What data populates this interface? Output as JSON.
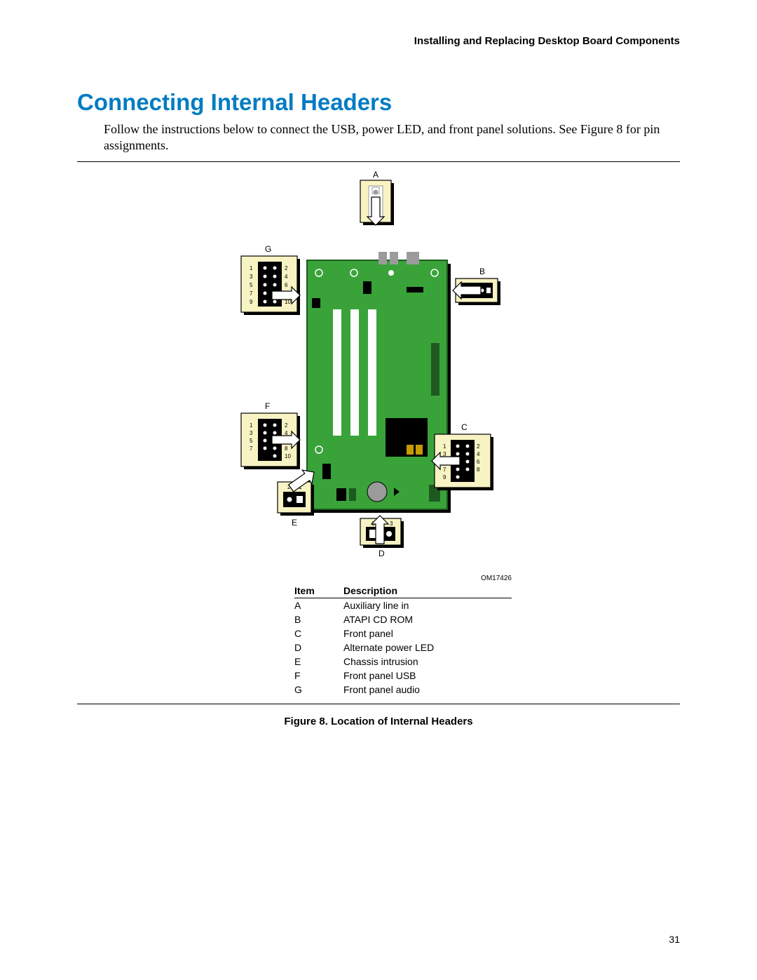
{
  "doc_header": "Installing and Replacing Desktop Board Components",
  "title": "Connecting Internal Headers",
  "intro": "Follow the instructions below to connect the USB, power LED, and front panel solutions.  See Figure 8 for pin assignments.",
  "figure_id": "OM17426",
  "caption": "Figure 8.  Location of Internal Headers",
  "page": "31",
  "table": {
    "headers": [
      "Item",
      "Description"
    ],
    "rows": [
      [
        "A",
        "Auxiliary line in"
      ],
      [
        "B",
        "ATAPI CD ROM"
      ],
      [
        "C",
        "Front panel"
      ],
      [
        "D",
        "Alternate power LED"
      ],
      [
        "E",
        "Chassis intrusion"
      ],
      [
        "F",
        "Front panel USB"
      ],
      [
        "G",
        "Front panel audio"
      ]
    ]
  },
  "diagram": {
    "colors": {
      "board": "#39a33a",
      "board_border": "#1e5a1f",
      "callout_bg": "#f8f3c3",
      "callout_border": "#000000",
      "shadow": "#000000",
      "pin_black": "#000000",
      "pin_white": "#ffffff",
      "gray_comp": "#9b9b9b",
      "dark_comp": "#2f2f2f",
      "arrow_fill": "#ffffff",
      "arrow_stroke": "#000000"
    },
    "labels": {
      "A": "A",
      "B": "B",
      "C": "C",
      "D": "D",
      "E": "E",
      "F": "F",
      "G": "G"
    },
    "pins": {
      "g_left": [
        "1",
        "3",
        "5",
        "7",
        "9"
      ],
      "g_right": [
        "2",
        "4",
        "6",
        "",
        "10"
      ],
      "f_left": [
        "1",
        "3",
        "5",
        "7",
        ""
      ],
      "f_right": [
        "2",
        "4",
        "6",
        "8",
        "10"
      ],
      "c_left": [
        "1",
        "3",
        "5",
        "7",
        "9"
      ],
      "c_right": [
        "2",
        "4",
        "6",
        "8",
        ""
      ],
      "e_top": [
        "2",
        "1"
      ],
      "d_top": [
        "1",
        "3"
      ]
    }
  }
}
